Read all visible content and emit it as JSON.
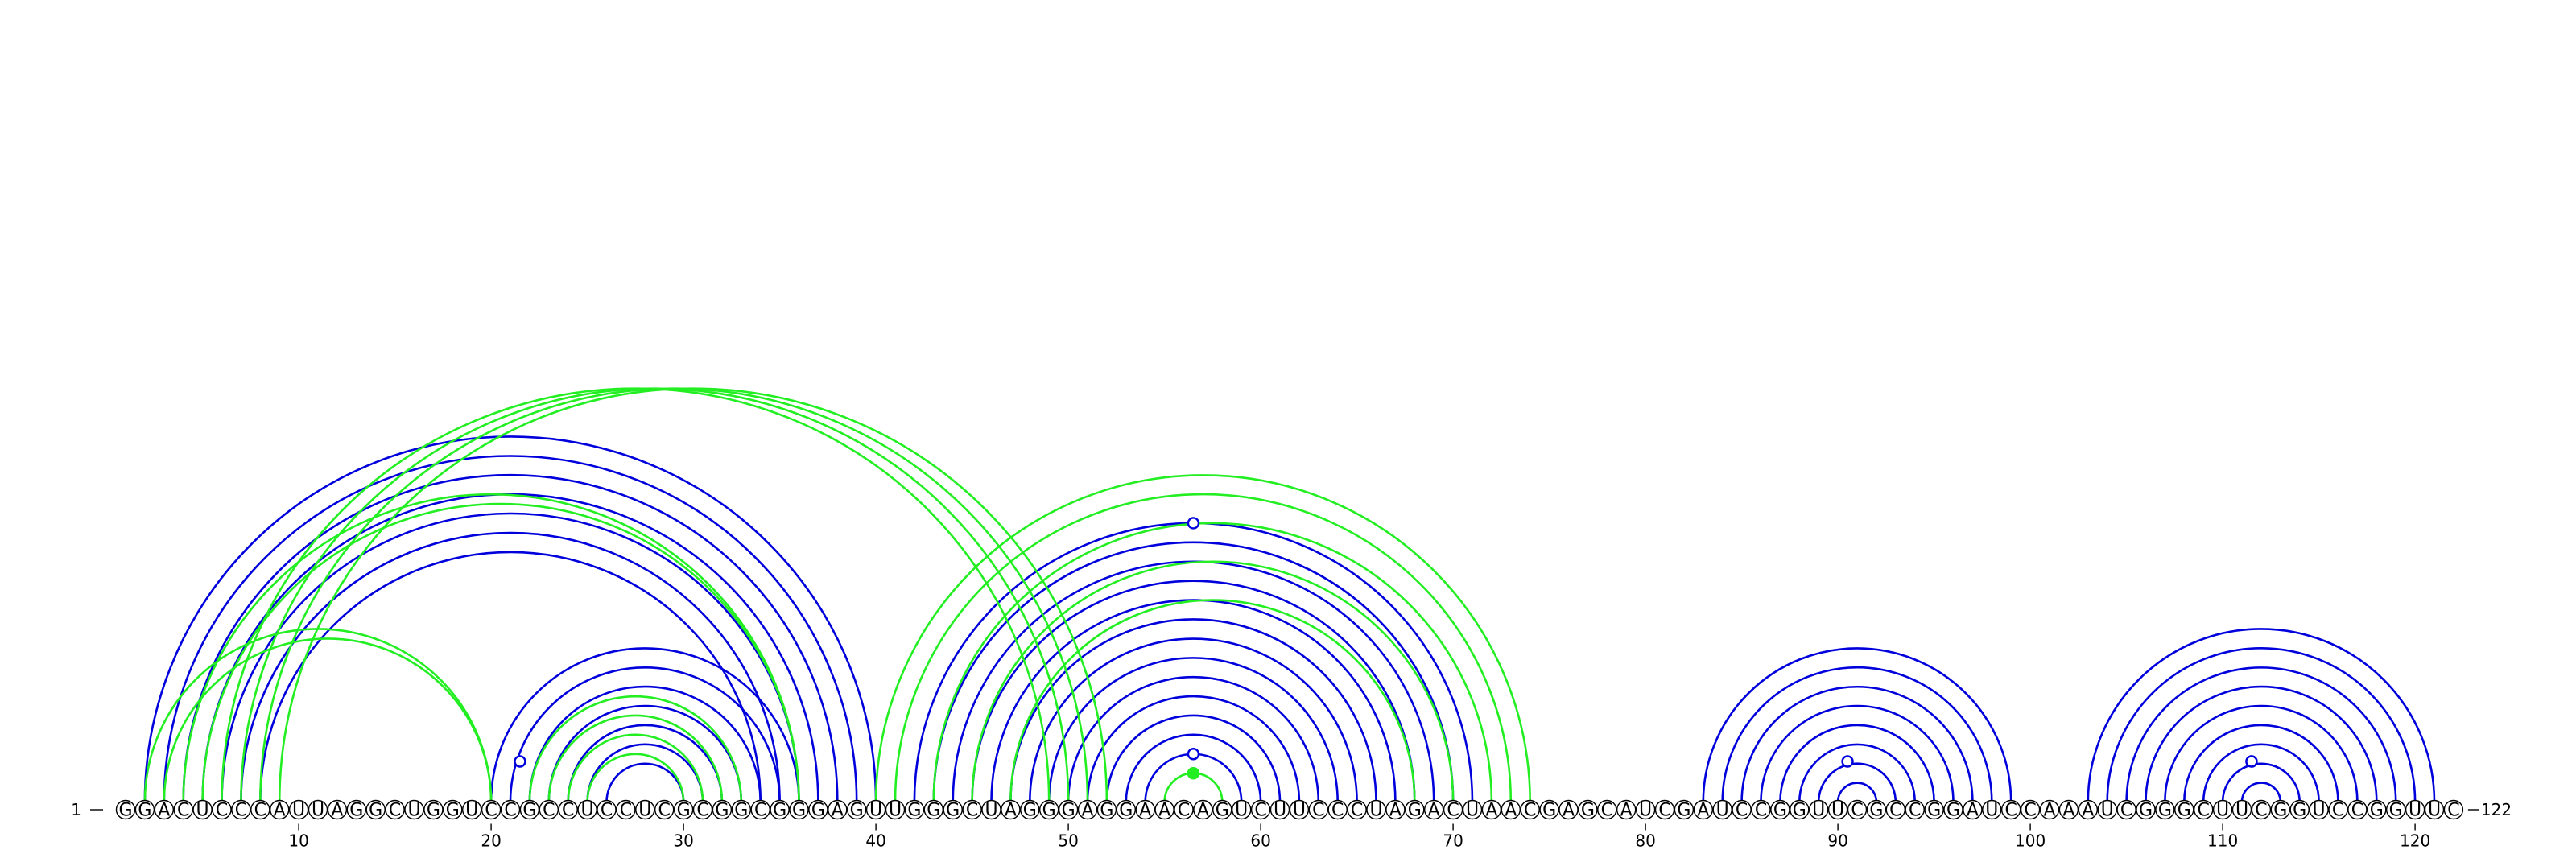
{
  "diagram": {
    "type": "rna-arc-diagram",
    "sequence": "GGACUCCCAUUAGGCUGGUCCGCCUCCUCGCGGCGGGAGUUGGGCUAGGGAGGAACAGUCUUCCCUAGACUAACGAGCAUCGAUCCGGUUCGCCGGAUCCAAAUCGGGCUUCGGUCCGGUUC",
    "start_label": "1",
    "end_label": "122",
    "ticks": [
      10,
      20,
      30,
      40,
      50,
      60,
      70,
      80,
      90,
      100,
      110,
      120
    ],
    "colors": {
      "reference": "#0000dd",
      "predicted": "#22ee22",
      "circle_stroke": "#000000",
      "circle_fill": "#ffffff"
    },
    "reference_pairs": [
      [
        2,
        40
      ],
      [
        3,
        39
      ],
      [
        4,
        38
      ],
      [
        5,
        37
      ],
      [
        6,
        36
      ],
      [
        7,
        35
      ],
      [
        8,
        34
      ],
      [
        20,
        36
      ],
      [
        21,
        35
      ],
      [
        22,
        34
      ],
      [
        23,
        33
      ],
      [
        24,
        32
      ],
      [
        25,
        31
      ],
      [
        26,
        30
      ],
      [
        42,
        71
      ],
      [
        43,
        70
      ],
      [
        44,
        69
      ],
      [
        45,
        68
      ],
      [
        46,
        67
      ],
      [
        47,
        66
      ],
      [
        48,
        65
      ],
      [
        49,
        64
      ],
      [
        50,
        63
      ],
      [
        51,
        62
      ],
      [
        52,
        61
      ],
      [
        53,
        60
      ],
      [
        54,
        59
      ],
      [
        83,
        99
      ],
      [
        84,
        98
      ],
      [
        85,
        97
      ],
      [
        86,
        96
      ],
      [
        87,
        95
      ],
      [
        88,
        94
      ],
      [
        89,
        93
      ],
      [
        90,
        92
      ],
      [
        103,
        121
      ],
      [
        104,
        120
      ],
      [
        105,
        119
      ],
      [
        106,
        118
      ],
      [
        107,
        117
      ],
      [
        108,
        116
      ],
      [
        109,
        115
      ],
      [
        110,
        114
      ],
      [
        111,
        113
      ]
    ],
    "predicted_pairs": [
      [
        2,
        20
      ],
      [
        3,
        20
      ],
      [
        4,
        36
      ],
      [
        5,
        36
      ],
      [
        6,
        49
      ],
      [
        7,
        50
      ],
      [
        8,
        51
      ],
      [
        9,
        52
      ],
      [
        22,
        33
      ],
      [
        23,
        32
      ],
      [
        24,
        31
      ],
      [
        25,
        30
      ],
      [
        40,
        74
      ],
      [
        41,
        73
      ],
      [
        43,
        72
      ],
      [
        45,
        70
      ],
      [
        47,
        68
      ],
      [
        55,
        58
      ]
    ],
    "reference_loop_markers": [
      21.5,
      56.5,
      90.5,
      111.5
    ],
    "reference_stem_markers": [
      56.5,
      111.5
    ],
    "predicted_loop_markers": [
      56.5
    ],
    "predicted_stem_markers": [
      56.5
    ]
  }
}
